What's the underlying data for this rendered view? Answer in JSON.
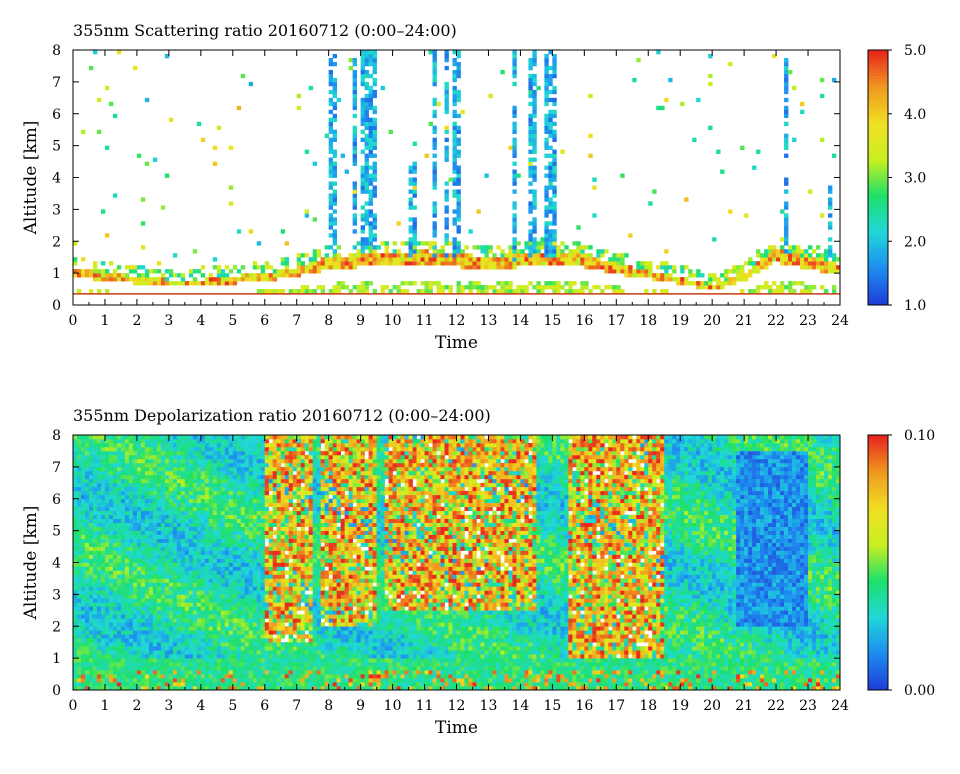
{
  "chart_data": [
    {
      "type": "heatmap",
      "title": "355nm Scattering ratio  20160712 (0:00–24:00)",
      "xlabel": "Time",
      "ylabel": "Altitude [km]",
      "x_ticks": [
        "0",
        "1",
        "2",
        "3",
        "4",
        "5",
        "6",
        "7",
        "8",
        "9",
        "10",
        "11",
        "12",
        "13",
        "14",
        "15",
        "16",
        "17",
        "18",
        "19",
        "20",
        "21",
        "22",
        "23",
        "24"
      ],
      "y_ticks": [
        "0",
        "1",
        "2",
        "3",
        "4",
        "5",
        "6",
        "7",
        "8"
      ],
      "xlim": [
        0,
        24
      ],
      "ylim": [
        0,
        8
      ],
      "colorbar": {
        "min": 1.0,
        "max": 5.0,
        "ticks": [
          "1.0",
          "2.0",
          "3.0",
          "4.0",
          "5.0"
        ]
      },
      "colormap": [
        "#1f3fd8",
        "#1e8ef0",
        "#20d8d8",
        "#1ee06a",
        "#c8f020",
        "#f0e020",
        "#f09a20",
        "#e8281e"
      ],
      "features": {
        "boundary_layer_top_km": [
          1.2,
          1.0,
          0.9,
          0.8,
          0.8,
          0.9,
          1.0,
          1.2,
          1.5,
          1.6,
          1.6,
          1.7,
          1.6,
          1.5,
          1.6,
          1.7,
          1.6,
          1.3,
          1.1,
          0.9,
          0.6,
          1.0,
          1.8,
          1.5,
          1.3
        ],
        "cloud_columns": [
          {
            "t": 8.1,
            "bottom_km": 1.6,
            "top_km": 8.0
          },
          {
            "t": 8.8,
            "bottom_km": 1.8,
            "top_km": 8.0
          },
          {
            "t": 9.1,
            "bottom_km": 1.8,
            "top_km": 8.0
          },
          {
            "t": 9.4,
            "bottom_km": 1.8,
            "top_km": 8.0
          },
          {
            "t": 10.6,
            "bottom_km": 1.5,
            "top_km": 4.5
          },
          {
            "t": 11.3,
            "bottom_km": 1.5,
            "top_km": 8.0
          },
          {
            "t": 11.7,
            "bottom_km": 1.5,
            "top_km": 8.0
          },
          {
            "t": 12.0,
            "bottom_km": 1.5,
            "top_km": 8.0
          },
          {
            "t": 13.8,
            "bottom_km": 1.4,
            "top_km": 8.0
          },
          {
            "t": 14.4,
            "bottom_km": 1.5,
            "top_km": 8.0
          },
          {
            "t": 14.8,
            "bottom_km": 1.5,
            "top_km": 8.0
          },
          {
            "t": 15.0,
            "bottom_km": 1.5,
            "top_km": 8.0
          },
          {
            "t": 22.3,
            "bottom_km": 1.5,
            "top_km": 7.8
          },
          {
            "t": 23.7,
            "bottom_km": 1.5,
            "top_km": 3.7
          }
        ]
      }
    },
    {
      "type": "heatmap",
      "title": "355nm Depolarization ratio  20160712 (0:00–24:00)",
      "xlabel": "Time",
      "ylabel": "Altitude [km]",
      "x_ticks": [
        "0",
        "1",
        "2",
        "3",
        "4",
        "5",
        "6",
        "7",
        "8",
        "9",
        "10",
        "11",
        "12",
        "13",
        "14",
        "15",
        "16",
        "17",
        "18",
        "19",
        "20",
        "21",
        "22",
        "23",
        "24"
      ],
      "y_ticks": [
        "0",
        "1",
        "2",
        "3",
        "4",
        "5",
        "6",
        "7",
        "8"
      ],
      "xlim": [
        0,
        24
      ],
      "ylim": [
        0,
        8
      ],
      "colorbar": {
        "min": 0.0,
        "max": 0.1,
        "ticks": [
          "0.00",
          "0.10"
        ]
      },
      "colormap": [
        "#1f3fd8",
        "#1e8ef0",
        "#20d8d8",
        "#1ee06a",
        "#c8f020",
        "#f0e020",
        "#f09a20",
        "#e8281e"
      ],
      "features": {
        "high_depol_regions": [
          {
            "t0": 6.0,
            "t1": 7.5,
            "z0_km": 1.5,
            "z1_km": 8.0
          },
          {
            "t0": 7.8,
            "t1": 9.5,
            "z0_km": 2.0,
            "z1_km": 8.0
          },
          {
            "t0": 9.8,
            "t1": 12.2,
            "z0_km": 2.5,
            "z1_km": 8.0
          },
          {
            "t0": 12.2,
            "t1": 14.5,
            "z0_km": 2.5,
            "z1_km": 8.0
          },
          {
            "t0": 15.5,
            "t1": 18.5,
            "z0_km": 1.0,
            "z1_km": 8.0
          }
        ]
      }
    }
  ]
}
